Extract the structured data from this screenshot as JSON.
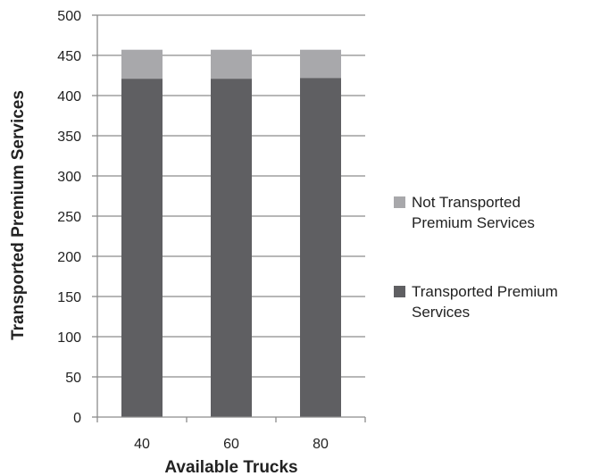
{
  "chart_data": {
    "type": "bar",
    "stacked": true,
    "categories": [
      "40",
      "60",
      "80"
    ],
    "series": [
      {
        "name": "Transported Premium Services",
        "values": [
          421,
          421,
          422
        ],
        "color": "#5f5f62"
      },
      {
        "name": "Not Transported Premium Services",
        "values": [
          36,
          36,
          35
        ],
        "color": "#a8a8ab"
      }
    ],
    "xlabel": "Available Trucks",
    "ylabel": "Transported Premium Services",
    "ylim": [
      0,
      500
    ],
    "yticks": [
      0,
      50,
      100,
      150,
      200,
      250,
      300,
      350,
      400,
      450,
      500
    ],
    "grid": true,
    "legend_position": "right",
    "legend": [
      {
        "lines": [
          "Not Transported",
          "Premium Services"
        ],
        "color": "#a8a8ab"
      },
      {
        "lines": [
          "Transported Premium",
          "Services"
        ],
        "color": "#5f5f62"
      }
    ],
    "gridline_color": "#8c8c8c",
    "axis_color": "#8c8c8c"
  }
}
